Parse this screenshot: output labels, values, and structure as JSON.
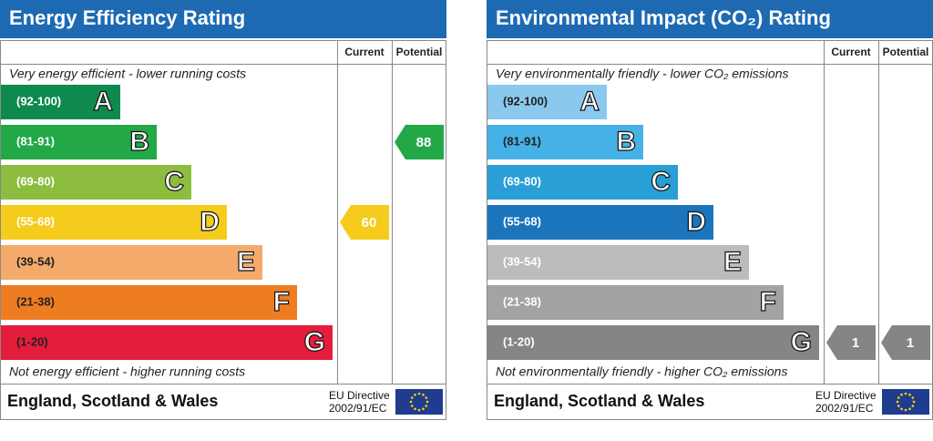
{
  "panels": [
    {
      "title": "Energy Efficiency Rating",
      "columns": [
        "Current",
        "Potential"
      ],
      "top_note": "Very energy efficient - lower running costs",
      "bands": [
        {
          "range": "(92-100)",
          "letter": "A",
          "color": "#0f8a4f"
        },
        {
          "range": "(81-91)",
          "letter": "B",
          "color": "#22a847"
        },
        {
          "range": "(69-80)",
          "letter": "C",
          "color": "#8cbd3f"
        },
        {
          "range": "(55-68)",
          "letter": "D",
          "color": "#f5cc1c"
        },
        {
          "range": "(39-54)",
          "letter": "E",
          "color": "#f3aa6a"
        },
        {
          "range": "(21-38)",
          "letter": "F",
          "color": "#ee7d22"
        },
        {
          "range": "(1-20)",
          "letter": "G",
          "color": "#e31d3b"
        }
      ],
      "bottom_note": "Not energy efficient - higher running costs",
      "current": 60,
      "potential": 88,
      "region": "England, Scotland & Wales",
      "directive": [
        "EU Directive",
        "2002/91/EC"
      ]
    },
    {
      "title": "Environmental Impact (CO₂) Rating",
      "columns": [
        "Current",
        "Potential"
      ],
      "top_note": "Very environmentally friendly - lower CO₂ emissions",
      "bands": [
        {
          "range": "(92-100)",
          "letter": "A",
          "color": "#8ac8ee"
        },
        {
          "range": "(81-91)",
          "letter": "B",
          "color": "#46b1e6"
        },
        {
          "range": "(69-80)",
          "letter": "C",
          "color": "#2a9fd6"
        },
        {
          "range": "(55-68)",
          "letter": "D",
          "color": "#1a75bc"
        },
        {
          "range": "(39-54)",
          "letter": "E",
          "color": "#bcbcbc"
        },
        {
          "range": "(21-38)",
          "letter": "F",
          "color": "#a3a3a3"
        },
        {
          "range": "(1-20)",
          "letter": "G",
          "color": "#858585"
        }
      ],
      "bottom_note": "Not environmentally friendly - higher CO₂ emissions",
      "current": 1,
      "potential": 1,
      "region": "England, Scotland & Wales",
      "directive": [
        "EU Directive",
        "2002/91/EC"
      ]
    }
  ]
}
